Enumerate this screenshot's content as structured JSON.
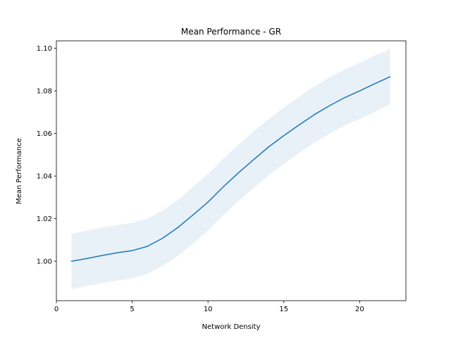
{
  "chart_data": {
    "type": "line",
    "title": "Mean Performance - GR",
    "xlabel": "Network Density",
    "ylabel": "Mean Performance",
    "xlim": [
      0,
      23.05
    ],
    "ylim": [
      0.9815,
      1.1035
    ],
    "xticks": [
      0,
      5,
      10,
      15,
      20
    ],
    "yticks": [
      1.0,
      1.02,
      1.04,
      1.06,
      1.08,
      1.1
    ],
    "xtick_labels": [
      "0",
      "5",
      "10",
      "15",
      "20"
    ],
    "ytick_labels": [
      "1.00",
      "1.02",
      "1.04",
      "1.06",
      "1.08",
      "1.10"
    ],
    "grid": false,
    "colors": {
      "line": "#1f77b4",
      "band": "#1f77b4"
    },
    "series": [
      {
        "x": [
          1,
          2,
          3,
          4,
          5,
          6,
          7,
          8,
          9,
          10,
          11,
          12,
          13,
          14,
          15,
          16,
          17,
          18,
          19,
          20,
          21,
          22
        ],
        "values": [
          1.0,
          1.0013,
          1.0027,
          1.004,
          1.005,
          1.007,
          1.0108,
          1.0158,
          1.0217,
          1.0278,
          1.0349,
          1.0415,
          1.0477,
          1.0537,
          1.059,
          1.064,
          1.0688,
          1.073,
          1.0768,
          1.08,
          1.0834,
          1.0866
        ],
        "lower": [
          0.987,
          0.9883,
          0.9897,
          0.991,
          0.992,
          0.994,
          0.9978,
          1.0025,
          1.0083,
          1.0145,
          1.0216,
          1.0282,
          1.0344,
          1.0404,
          1.0458,
          1.0508,
          1.0556,
          1.0598,
          1.0636,
          1.0668,
          1.0702,
          1.0736
        ],
        "upper": [
          1.013,
          1.0143,
          1.0157,
          1.017,
          1.018,
          1.02,
          1.0238,
          1.0288,
          1.0349,
          1.041,
          1.0481,
          1.0547,
          1.0609,
          1.0669,
          1.0722,
          1.0772,
          1.082,
          1.0862,
          1.09,
          1.0932,
          1.0966,
          1.0996
        ]
      }
    ]
  }
}
